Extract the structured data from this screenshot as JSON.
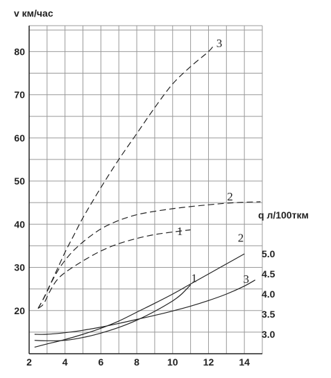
{
  "chart_data": {
    "type": "line",
    "title": "",
    "xlabel": "",
    "ylabel": "v км/час",
    "y2label": "q л/100ткм",
    "xlim": [
      2,
      15
    ],
    "ylim": [
      10,
      86
    ],
    "y2lim": [
      2.5,
      5.5
    ],
    "grid": true,
    "x_ticks": [
      "2",
      "4",
      "6",
      "8",
      "10",
      "12",
      "14"
    ],
    "y_ticks": [
      "20",
      "30",
      "40",
      "50",
      "60",
      "70",
      "80"
    ],
    "y2_ticks": [
      "3.0",
      "3.5",
      "4.0",
      "4.5",
      "5.0"
    ],
    "series": [
      {
        "name": "3",
        "axis": "left",
        "style": "dashed",
        "label_at": [
          12.6,
          81
        ],
        "points": [
          [
            2.5,
            20.5
          ],
          [
            2.7,
            22
          ],
          [
            3,
            24.5
          ],
          [
            3.5,
            29
          ],
          [
            4,
            33.5
          ],
          [
            4.5,
            37.5
          ],
          [
            5,
            41.5
          ],
          [
            6,
            48.5
          ],
          [
            7,
            55
          ],
          [
            8,
            61
          ],
          [
            9,
            67
          ],
          [
            10,
            72.5
          ],
          [
            11,
            76.5
          ],
          [
            12,
            80
          ],
          [
            12.3,
            81.5
          ]
        ]
      },
      {
        "name": "2",
        "axis": "left",
        "style": "dashed",
        "label_at": [
          13.2,
          45.5
        ],
        "points": [
          [
            2.5,
            20.5
          ],
          [
            2.9,
            23.5
          ],
          [
            3.3,
            27
          ],
          [
            3.8,
            30.5
          ],
          [
            4.5,
            34
          ],
          [
            5.5,
            37.5
          ],
          [
            6.5,
            40
          ],
          [
            8,
            42.2
          ],
          [
            10,
            43.6
          ],
          [
            12,
            44.5
          ],
          [
            13.5,
            45
          ],
          [
            14.9,
            45.2
          ]
        ]
      },
      {
        "name": "1",
        "axis": "left",
        "style": "dashed",
        "label_at": [
          10.4,
          37.5
        ],
        "points": [
          [
            2.5,
            20.5
          ],
          [
            2.8,
            21.5
          ],
          [
            3.1,
            24
          ],
          [
            3.5,
            26.8
          ],
          [
            4,
            28.8
          ],
          [
            5,
            31.5
          ],
          [
            6,
            33.8
          ],
          [
            7,
            35.5
          ],
          [
            8,
            36.7
          ],
          [
            9,
            37.6
          ],
          [
            10,
            38.2
          ],
          [
            11,
            38.7
          ]
        ]
      },
      {
        "name": "2",
        "axis": "right",
        "style": "solid",
        "label_at": [
          13.8,
          5.3
        ],
        "points": [
          [
            2.3,
            2.68
          ],
          [
            3,
            2.76
          ],
          [
            4,
            2.87
          ],
          [
            5,
            3.0
          ],
          [
            6,
            3.15
          ],
          [
            7,
            3.33
          ],
          [
            8,
            3.55
          ],
          [
            9,
            3.77
          ],
          [
            10,
            4.0
          ],
          [
            11,
            4.25
          ],
          [
            12,
            4.5
          ],
          [
            13,
            4.75
          ],
          [
            14,
            5.0
          ]
        ]
      },
      {
        "name": "1",
        "axis": "right",
        "style": "solid",
        "label_at": [
          11.2,
          4.3
        ],
        "points": [
          [
            2.3,
            2.85
          ],
          [
            3,
            2.84
          ],
          [
            4,
            2.85
          ],
          [
            5,
            2.92
          ],
          [
            6,
            3.03
          ],
          [
            7,
            3.17
          ],
          [
            8,
            3.35
          ],
          [
            9,
            3.57
          ],
          [
            10,
            3.83
          ],
          [
            10.5,
            4.0
          ],
          [
            11,
            4.23
          ]
        ]
      },
      {
        "name": "3",
        "axis": "right",
        "style": "solid",
        "label_at": [
          14.1,
          4.28
        ],
        "points": [
          [
            2.3,
            3.0
          ],
          [
            3,
            3.0
          ],
          [
            4,
            3.04
          ],
          [
            5,
            3.1
          ],
          [
            6,
            3.18
          ],
          [
            7,
            3.27
          ],
          [
            8,
            3.37
          ],
          [
            9,
            3.47
          ],
          [
            10,
            3.58
          ],
          [
            11,
            3.7
          ],
          [
            12,
            3.84
          ],
          [
            13,
            4.0
          ],
          [
            14,
            4.2
          ],
          [
            14.6,
            4.35
          ]
        ]
      }
    ]
  }
}
